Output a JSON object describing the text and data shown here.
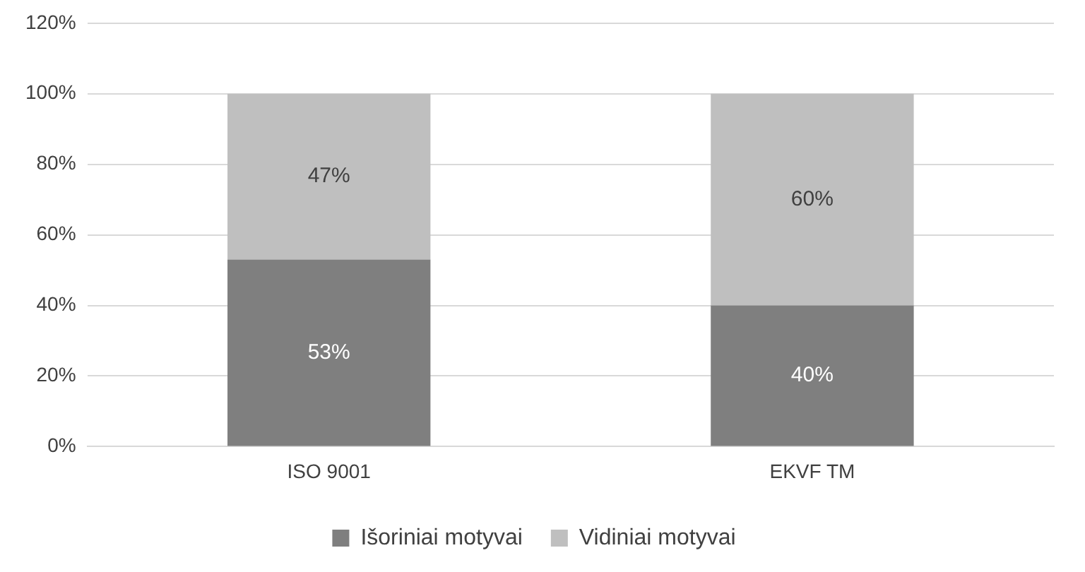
{
  "chart_data": {
    "type": "bar",
    "stacked": true,
    "categories": [
      "ISO 9001",
      "EKVF TM"
    ],
    "series": [
      {
        "name": "Išoriniai motyvai",
        "color": "#7f7f7f",
        "values": [
          53,
          40
        ],
        "value_labels": [
          "53%",
          "40%"
        ]
      },
      {
        "name": "Vidiniai motyvai",
        "color": "#bfbfbf",
        "values": [
          47,
          60
        ],
        "value_labels": [
          "47%",
          "60%"
        ]
      }
    ],
    "ylim": [
      0,
      120
    ],
    "yticks": [
      {
        "value": 0,
        "label": "0%"
      },
      {
        "value": 20,
        "label": "20%"
      },
      {
        "value": 40,
        "label": "40%"
      },
      {
        "value": 60,
        "label": "60%"
      },
      {
        "value": 80,
        "label": "80%"
      },
      {
        "value": 100,
        "label": "100%"
      },
      {
        "value": 120,
        "label": "120%"
      }
    ],
    "grid": "y",
    "legend": "bottom"
  }
}
